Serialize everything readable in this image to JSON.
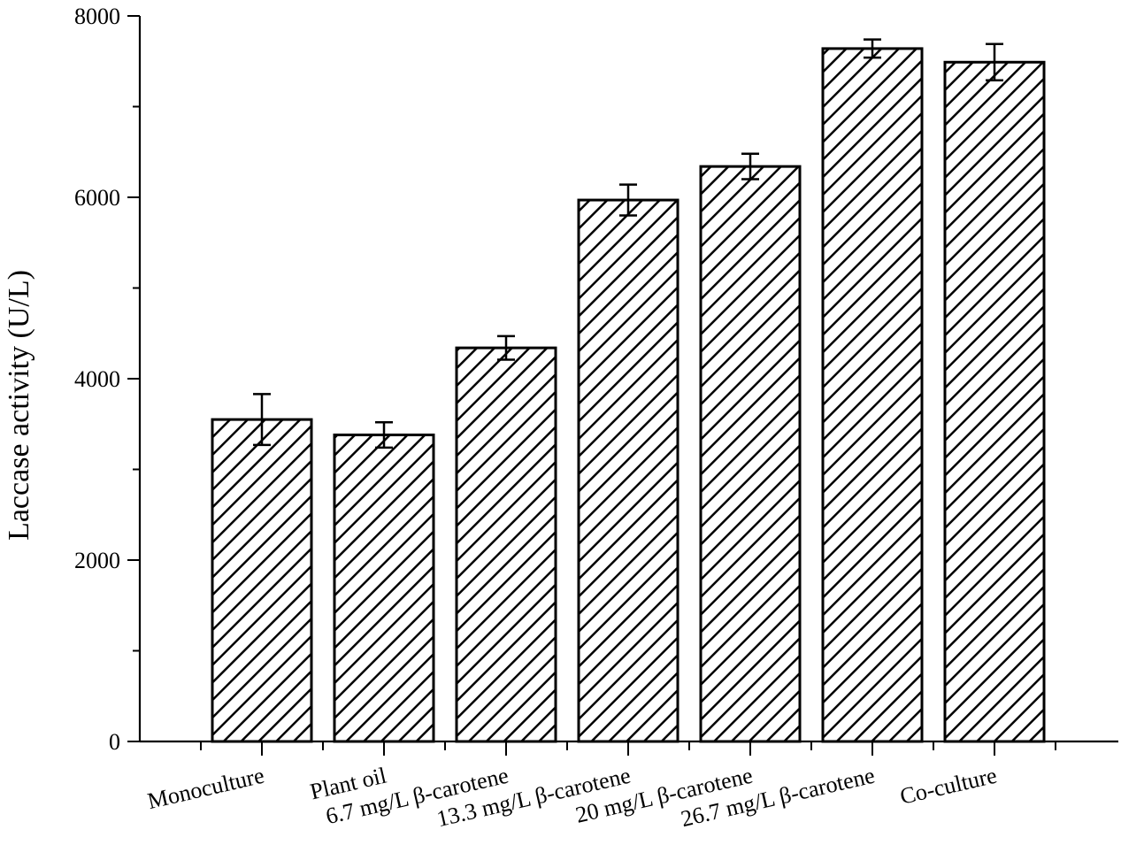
{
  "chart_data": {
    "type": "bar",
    "title": "",
    "xlabel": "",
    "ylabel": "Laccase activity (U/L)",
    "ylim": [
      0,
      8000
    ],
    "yticks": [
      "0",
      "2000",
      "4000",
      "6000",
      "8000"
    ],
    "categories": [
      "Monoculture",
      "Plant oil",
      "6.7 mg/L β-carotene",
      "13.3 mg/L β-carotene",
      "20 mg/L β-carotene",
      "26.7 mg/L β-carotene",
      "Co-culture"
    ],
    "values": [
      3550,
      3380,
      4340,
      5970,
      6340,
      7640,
      7490
    ],
    "errors": [
      280,
      140,
      130,
      170,
      140,
      100,
      200
    ],
    "grid": false,
    "legend": "none",
    "bar_pattern": "diagonal-hatch",
    "bar_color": "#000000"
  }
}
